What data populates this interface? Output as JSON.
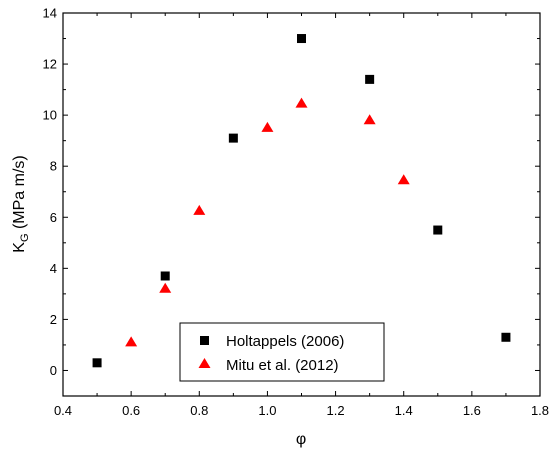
{
  "chart_data": {
    "type": "scatter",
    "title": "",
    "xlabel": "φ",
    "ylabel": {
      "base": "K",
      "subscript": "G",
      "rest": " (MPa m/s)"
    },
    "xlim": [
      0.4,
      1.8
    ],
    "ylim": [
      -1,
      14
    ],
    "xticks": [
      0.4,
      0.6,
      0.8,
      1.0,
      1.2,
      1.4,
      1.6,
      1.8
    ],
    "xtick_labels": [
      "0.4",
      "0.6",
      "0.8",
      "1.0",
      "1.2",
      "1.4",
      "1.6",
      "1.8"
    ],
    "yticks": [
      0,
      2,
      4,
      6,
      8,
      10,
      12,
      14
    ],
    "ytick_labels": [
      "0",
      "2",
      "4",
      "6",
      "8",
      "10",
      "12",
      "14"
    ],
    "grid": false,
    "legend_position": "bottom-center",
    "series": [
      {
        "name": "Holtappels (2006)",
        "marker": "square",
        "color": "#000000",
        "points": [
          {
            "x": 0.5,
            "y": 0.3
          },
          {
            "x": 0.7,
            "y": 3.7
          },
          {
            "x": 0.9,
            "y": 9.1
          },
          {
            "x": 1.1,
            "y": 13.0
          },
          {
            "x": 1.3,
            "y": 11.4
          },
          {
            "x": 1.5,
            "y": 5.5
          },
          {
            "x": 1.7,
            "y": 1.3
          }
        ]
      },
      {
        "name": "Mitu et al. (2012)",
        "marker": "triangle",
        "color": "#ff0000",
        "points": [
          {
            "x": 0.6,
            "y": 1.1
          },
          {
            "x": 0.7,
            "y": 3.2
          },
          {
            "x": 0.8,
            "y": 6.25
          },
          {
            "x": 1.0,
            "y": 9.5
          },
          {
            "x": 1.1,
            "y": 10.45
          },
          {
            "x": 1.3,
            "y": 9.8
          },
          {
            "x": 1.4,
            "y": 7.45
          }
        ]
      }
    ]
  }
}
